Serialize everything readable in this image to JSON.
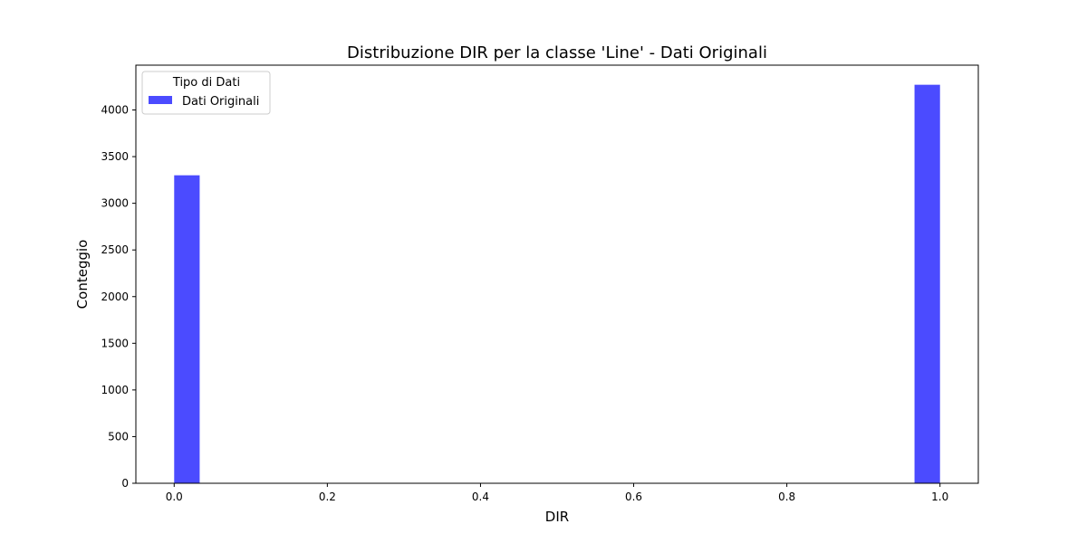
{
  "chart_data": {
    "type": "bar",
    "title": "Distribuzione DIR per la classe 'Line' - Dati Originali",
    "xlabel": "DIR",
    "ylabel": "Conteggio",
    "xlim": [
      -0.05,
      1.05
    ],
    "ylim": [
      0,
      4480
    ],
    "xticks": [
      0.0,
      0.2,
      0.4,
      0.6,
      0.8,
      1.0
    ],
    "xtick_labels": [
      "0.0",
      "0.2",
      "0.4",
      "0.6",
      "0.8",
      "1.0"
    ],
    "yticks": [
      0,
      500,
      1000,
      1500,
      2000,
      2500,
      3000,
      3500,
      4000
    ],
    "ytick_labels": [
      "0",
      "500",
      "1000",
      "1500",
      "2000",
      "2500",
      "3000",
      "3500",
      "4000"
    ],
    "bin_width": 0.0333,
    "legend": {
      "title": "Tipo di Dati",
      "placement": "top-left"
    },
    "grid": false,
    "series": [
      {
        "name": "Dati Originali",
        "color": "#4b4bff",
        "bars": [
          {
            "x_start": 0.0,
            "x_end": 0.0333,
            "value": 3300
          },
          {
            "x_start": 0.9667,
            "x_end": 1.0,
            "value": 4270
          }
        ]
      }
    ]
  }
}
